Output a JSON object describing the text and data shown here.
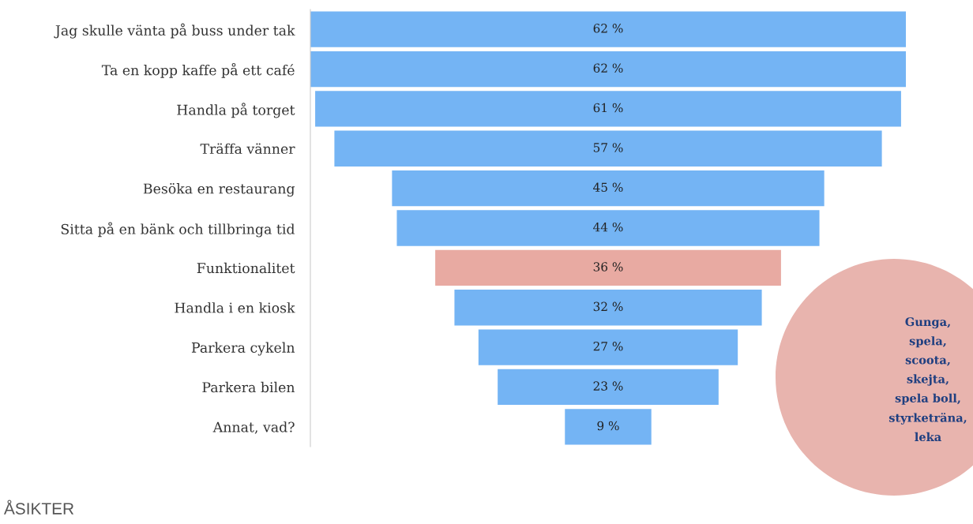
{
  "chart_data": {
    "type": "other",
    "categories": [
      "Jag skulle vänta på buss under tak",
      "Ta en kopp kaffe på ett café",
      "Handla på torget",
      "Träffa vänner",
      "Besöka en restaurang",
      "Sitta på en bänk och tillbringa tid",
      "Funktionalitet",
      "Handla i en kiosk",
      "Parkera cykeln",
      "Parkera bilen",
      "Annat, vad?"
    ],
    "values": [
      62,
      62,
      61,
      57,
      45,
      44,
      36,
      32,
      27,
      23,
      9
    ],
    "value_labels": [
      "62 %",
      "62 %",
      "61 %",
      "57 %",
      "45 %",
      "44 %",
      "36 %",
      "32 %",
      "27 %",
      "23 %",
      "9 %"
    ],
    "colors": [
      "#74b4f4",
      "#74b4f4",
      "#74b4f4",
      "#74b4f4",
      "#74b4f4",
      "#74b4f4",
      "#e8aaa2",
      "#74b4f4",
      "#74b4f4",
      "#74b4f4",
      "#74b4f4"
    ],
    "annotations": [
      "Gunga,\nspela,\nscoota,\nskejta,\nspela boll,\nstyrketräna,\nleka",
      "ÅSIKTER"
    ]
  }
}
